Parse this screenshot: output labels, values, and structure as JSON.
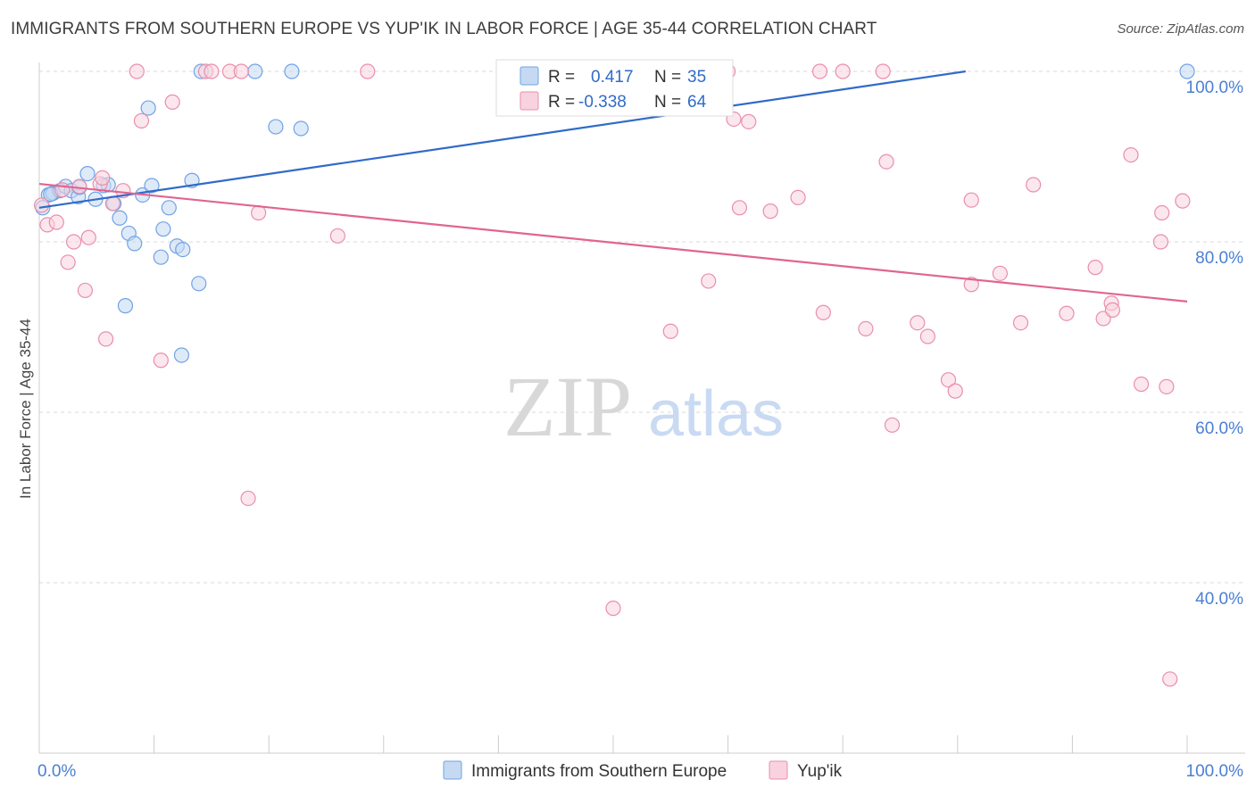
{
  "title": "IMMIGRANTS FROM SOUTHERN EUROPE VS YUP'IK IN LABOR FORCE | AGE 35-44 CORRELATION CHART",
  "source": "Source: ZipAtlas.com",
  "watermark": {
    "zip": "ZIP",
    "atlas": "atlas"
  },
  "colors": {
    "blue": "#6fa3e6",
    "blue_fill": "#c5d9f3",
    "blue_line": "#2f6bc8",
    "pink": "#ea8eab",
    "pink_fill": "#f8d3df",
    "pink_line": "#e06590",
    "tick": "#4a7fd4",
    "grid": "#d9d9d9"
  },
  "chart_data": {
    "type": "scatter",
    "ylabel": "In Labor Force | Age 35-44",
    "xlim": [
      0,
      100
    ],
    "ylim": [
      20,
      102
    ],
    "x_tick_labels": [
      "0.0%",
      "100.0%"
    ],
    "y_ticks": [
      40,
      60,
      80,
      100
    ],
    "y_tick_labels": [
      "40.0%",
      "60.0%",
      "80.0%",
      "100.0%"
    ],
    "legend": {
      "r_label": "R =",
      "n_label": "N =",
      "entries": [
        {
          "series": "Immigrants from Southern Europe",
          "r": "0.417",
          "n": "35"
        },
        {
          "series": "Yup'ik",
          "r": "-0.338",
          "n": "64"
        }
      ]
    },
    "series": [
      {
        "name": "Immigrants from Southern Europe",
        "color": "blue",
        "trend": {
          "x": [
            0,
            80.7
          ],
          "y": [
            84.0,
            100.0
          ]
        },
        "points": [
          [
            0.3,
            84.0
          ],
          [
            0.8,
            85.5
          ],
          [
            1.2,
            85.7
          ],
          [
            1.8,
            86.0
          ],
          [
            2.3,
            86.5
          ],
          [
            2.8,
            86.0
          ],
          [
            3.4,
            85.3
          ],
          [
            4.2,
            88.0
          ],
          [
            4.9,
            85.0
          ],
          [
            5.6,
            86.6
          ],
          [
            6.0,
            86.7
          ],
          [
            6.5,
            84.5
          ],
          [
            7.0,
            82.8
          ],
          [
            7.8,
            81.0
          ],
          [
            8.3,
            79.8
          ],
          [
            9.0,
            85.5
          ],
          [
            9.5,
            95.7
          ],
          [
            9.8,
            86.6
          ],
          [
            10.8,
            81.5
          ],
          [
            10.6,
            78.2
          ],
          [
            11.3,
            84.0
          ],
          [
            12.0,
            79.5
          ],
          [
            12.5,
            79.1
          ],
          [
            13.3,
            87.2
          ],
          [
            13.9,
            75.1
          ],
          [
            14.1,
            100.0
          ],
          [
            18.8,
            100.0
          ],
          [
            20.6,
            93.5
          ],
          [
            22.0,
            100.0
          ],
          [
            22.8,
            93.3
          ],
          [
            7.5,
            72.5
          ],
          [
            12.4,
            66.7
          ],
          [
            1.0,
            85.6
          ],
          [
            3.5,
            86.4
          ],
          [
            100.0,
            100.0
          ]
        ]
      },
      {
        "name": "Yup'ik",
        "color": "pink",
        "trend": {
          "x": [
            0,
            100
          ],
          "y": [
            86.8,
            73.0
          ]
        },
        "points": [
          [
            0.2,
            84.3
          ],
          [
            0.7,
            82.0
          ],
          [
            1.5,
            82.3
          ],
          [
            2.0,
            86.1
          ],
          [
            2.5,
            77.6
          ],
          [
            3.0,
            80.0
          ],
          [
            3.5,
            86.5
          ],
          [
            4.0,
            74.3
          ],
          [
            4.3,
            80.5
          ],
          [
            5.3,
            86.8
          ],
          [
            5.5,
            87.5
          ],
          [
            5.8,
            68.6
          ],
          [
            6.4,
            84.5
          ],
          [
            7.3,
            86.0
          ],
          [
            8.5,
            100.0
          ],
          [
            8.9,
            94.2
          ],
          [
            10.6,
            66.1
          ],
          [
            11.6,
            96.4
          ],
          [
            14.5,
            100.0
          ],
          [
            15.0,
            100.0
          ],
          [
            16.6,
            100.0
          ],
          [
            17.6,
            100.0
          ],
          [
            18.2,
            49.9
          ],
          [
            19.1,
            83.4
          ],
          [
            26.0,
            80.7
          ],
          [
            28.6,
            100.0
          ],
          [
            41.0,
            100.0
          ],
          [
            50.0,
            37.0
          ],
          [
            55.0,
            69.5
          ],
          [
            58.3,
            75.4
          ],
          [
            60.0,
            100.0
          ],
          [
            60.5,
            94.4
          ],
          [
            61.0,
            84.0
          ],
          [
            61.8,
            94.1
          ],
          [
            63.7,
            83.6
          ],
          [
            66.1,
            85.2
          ],
          [
            68.0,
            100.0
          ],
          [
            68.3,
            71.7
          ],
          [
            70.0,
            100.0
          ],
          [
            72.0,
            69.8
          ],
          [
            73.5,
            100.0
          ],
          [
            73.8,
            89.4
          ],
          [
            74.3,
            58.5
          ],
          [
            76.5,
            70.5
          ],
          [
            77.4,
            68.9
          ],
          [
            79.2,
            63.8
          ],
          [
            79.8,
            62.5
          ],
          [
            81.2,
            84.9
          ],
          [
            81.2,
            75.0
          ],
          [
            83.7,
            76.3
          ],
          [
            85.5,
            70.5
          ],
          [
            86.6,
            86.7
          ],
          [
            89.5,
            71.6
          ],
          [
            92.0,
            77.0
          ],
          [
            92.7,
            71.0
          ],
          [
            93.4,
            72.8
          ],
          [
            93.5,
            72.0
          ],
          [
            95.1,
            90.2
          ],
          [
            96.0,
            63.3
          ],
          [
            97.7,
            80.0
          ],
          [
            97.8,
            83.4
          ],
          [
            98.2,
            63.0
          ],
          [
            98.5,
            28.7
          ],
          [
            99.6,
            84.8
          ]
        ]
      }
    ]
  },
  "bottom_legend": [
    "Immigrants from Southern Europe",
    "Yup'ik"
  ]
}
